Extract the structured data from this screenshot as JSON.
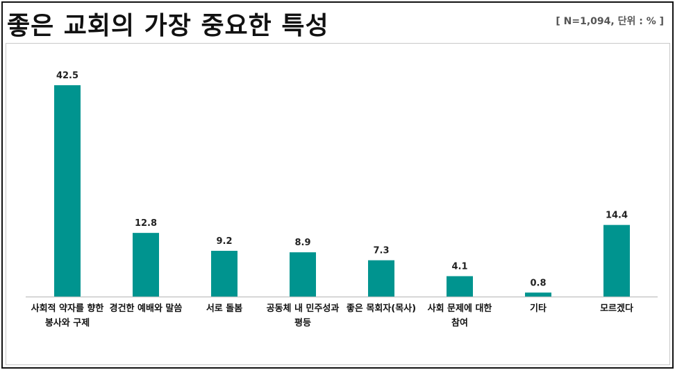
{
  "header": {
    "title": "좋은 교회의 가장 중요한 특성",
    "meta": "[ N=1,094, 단위 : % ]"
  },
  "colors": {
    "bar": "#00948f",
    "axis": "#c8c8c8"
  },
  "chart_data": {
    "type": "bar",
    "title": "좋은 교회의 가장 중요한 특성",
    "xlabel": "",
    "ylabel": "",
    "unit": "%",
    "categories": [
      [
        "사회적 약자를 향한",
        "봉사와 구제"
      ],
      [
        "경건한 예배와 말씀"
      ],
      [
        "서로 돌봄"
      ],
      [
        "공동체 내 민주성과",
        "평등"
      ],
      [
        "좋은 목회자(목사)"
      ],
      [
        "사회 문제에 대한",
        "참여"
      ],
      [
        "기타"
      ],
      [
        "모르겠다"
      ]
    ],
    "values": [
      42.5,
      12.8,
      9.2,
      8.9,
      7.3,
      4.1,
      0.8,
      14.4
    ],
    "value_labels": [
      "42.5",
      "12.8",
      "9.2",
      "8.9",
      "7.3",
      "4.1",
      "0.8",
      "14.4"
    ],
    "ylim": [
      0,
      42.5
    ],
    "grid": false,
    "legend": "none"
  }
}
